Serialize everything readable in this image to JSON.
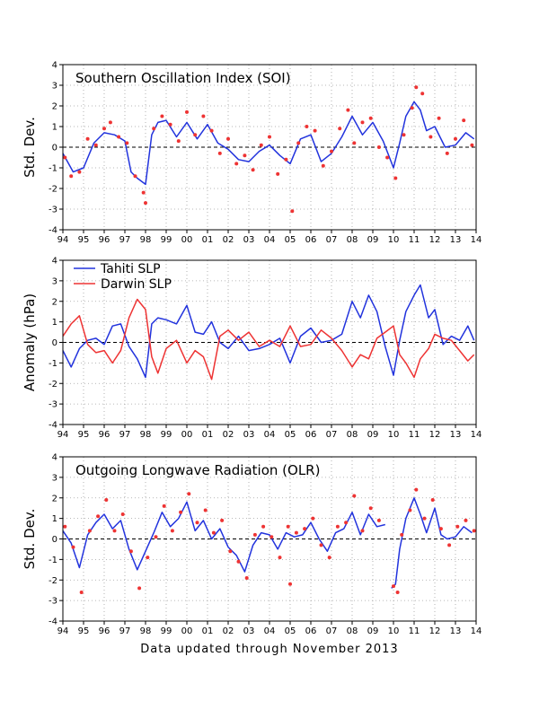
{
  "footer": "Data updated through November 2013",
  "colors": {
    "blue": "#2233dd",
    "red": "#ee3333",
    "grid": "#a0a0a0",
    "axis": "#000000"
  },
  "chart_data": [
    {
      "type": "line",
      "title": "Southern Oscillation Index (SOI)",
      "ylabel": "Std. Dev.",
      "xlim": [
        1994,
        2014
      ],
      "ylim": [
        -4,
        4
      ],
      "xticks": [
        "94",
        "95",
        "96",
        "97",
        "98",
        "99",
        "00",
        "01",
        "02",
        "03",
        "04",
        "05",
        "06",
        "07",
        "08",
        "09",
        "10",
        "11",
        "12",
        "13",
        "14"
      ],
      "yticks": [
        "-4",
        "-3",
        "-2",
        "-1",
        "0",
        "1",
        "2",
        "3",
        "4"
      ],
      "grid": true,
      "series": [
        {
          "style": "line",
          "color": "#2233dd",
          "x": [
            1994.0,
            1994.5,
            1995.0,
            1995.5,
            1996.0,
            1996.5,
            1997.0,
            1997.3,
            1997.6,
            1998.0,
            1998.3,
            1998.6,
            1999.0,
            1999.5,
            2000.0,
            2000.5,
            2001.0,
            2001.5,
            2002.0,
            2002.5,
            2003.0,
            2003.5,
            2004.0,
            2004.5,
            2005.0,
            2005.5,
            2006.0,
            2006.5,
            2007.0,
            2007.5,
            2008.0,
            2008.5,
            2009.0,
            2009.5,
            2010.0,
            2010.3,
            2010.6,
            2011.0,
            2011.3,
            2011.6,
            2012.0,
            2012.5,
            2013.0,
            2013.5,
            2013.9
          ],
          "y": [
            -0.3,
            -1.2,
            -1.0,
            0.2,
            0.7,
            0.6,
            0.3,
            -1.2,
            -1.5,
            -1.8,
            0.6,
            1.2,
            1.3,
            0.5,
            1.2,
            0.4,
            1.1,
            0.2,
            -0.1,
            -0.6,
            -0.7,
            -0.2,
            0.1,
            -0.4,
            -0.8,
            0.4,
            0.6,
            -0.7,
            -0.3,
            0.5,
            1.5,
            0.6,
            1.2,
            0.3,
            -1.0,
            0.2,
            1.5,
            2.2,
            1.8,
            0.8,
            1.0,
            0.0,
            0.1,
            0.7,
            0.4
          ]
        },
        {
          "style": "points",
          "color": "#ee3333",
          "x": [
            1994.1,
            1994.4,
            1994.8,
            1995.2,
            1995.6,
            1996.0,
            1996.3,
            1996.7,
            1997.1,
            1997.5,
            1997.9,
            1998.0,
            1998.4,
            1998.8,
            1999.2,
            1999.6,
            2000.0,
            2000.4,
            2000.8,
            2001.2,
            2001.6,
            2002.0,
            2002.4,
            2002.8,
            2003.2,
            2003.6,
            2004.0,
            2004.4,
            2004.8,
            2005.1,
            2005.4,
            2005.8,
            2006.2,
            2006.6,
            2007.0,
            2007.4,
            2007.8,
            2008.1,
            2008.5,
            2008.9,
            2009.3,
            2009.7,
            2010.1,
            2010.5,
            2010.9,
            2011.1,
            2011.4,
            2011.8,
            2012.2,
            2012.6,
            2013.0,
            2013.4,
            2013.8
          ],
          "y": [
            -0.5,
            -1.4,
            -1.2,
            0.4,
            0.1,
            0.9,
            1.2,
            0.5,
            0.2,
            -1.4,
            -2.2,
            -2.7,
            0.9,
            1.5,
            1.1,
            0.3,
            1.7,
            0.6,
            1.5,
            0.8,
            -0.3,
            0.4,
            -0.8,
            -0.4,
            -1.1,
            0.1,
            0.5,
            -1.3,
            -0.6,
            -3.1,
            0.2,
            1.0,
            0.8,
            -0.9,
            -0.2,
            0.9,
            1.8,
            0.2,
            1.2,
            1.4,
            0.0,
            -0.5,
            -1.5,
            0.6,
            1.9,
            2.9,
            2.6,
            0.5,
            1.4,
            -0.3,
            0.4,
            1.3,
            0.1
          ]
        }
      ]
    },
    {
      "type": "line",
      "ylabel": "Anomaly (hPa)",
      "xlim": [
        1994,
        2014
      ],
      "ylim": [
        -4,
        4
      ],
      "xticks": [
        "94",
        "95",
        "96",
        "97",
        "98",
        "99",
        "00",
        "01",
        "02",
        "03",
        "04",
        "05",
        "06",
        "07",
        "08",
        "09",
        "10",
        "11",
        "12",
        "13",
        "14"
      ],
      "yticks": [
        "-4",
        "-3",
        "-2",
        "-1",
        "0",
        "1",
        "2",
        "3",
        "4"
      ],
      "grid": true,
      "legend": "top-left",
      "series": [
        {
          "name": "Tahiti SLP",
          "style": "line",
          "color": "#2233dd",
          "x": [
            1994.0,
            1994.4,
            1994.8,
            1995.2,
            1995.6,
            1996.0,
            1996.4,
            1996.8,
            1997.2,
            1997.6,
            1998.0,
            1998.3,
            1998.6,
            1999.0,
            1999.5,
            2000.0,
            2000.4,
            2000.8,
            2001.2,
            2001.6,
            2002.0,
            2002.5,
            2003.0,
            2003.5,
            2004.0,
            2004.5,
            2005.0,
            2005.5,
            2006.0,
            2006.5,
            2007.0,
            2007.5,
            2008.0,
            2008.4,
            2008.8,
            2009.2,
            2009.6,
            2010.0,
            2010.3,
            2010.6,
            2011.0,
            2011.3,
            2011.7,
            2012.0,
            2012.4,
            2012.8,
            2013.2,
            2013.6,
            2013.9
          ],
          "y": [
            -0.4,
            -1.2,
            -0.3,
            0.1,
            0.2,
            -0.1,
            0.8,
            0.9,
            -0.2,
            -0.8,
            -1.7,
            0.9,
            1.2,
            1.1,
            0.9,
            1.8,
            0.5,
            0.4,
            1.0,
            0.0,
            -0.3,
            0.3,
            -0.4,
            -0.3,
            -0.1,
            0.2,
            -1.0,
            0.3,
            0.7,
            0.0,
            0.1,
            0.4,
            2.0,
            1.2,
            2.3,
            1.5,
            -0.2,
            -1.6,
            0.1,
            1.5,
            2.3,
            2.8,
            1.2,
            1.6,
            -0.1,
            0.3,
            0.1,
            0.8,
            0.1
          ]
        },
        {
          "name": "Darwin SLP",
          "style": "line",
          "color": "#ee3333",
          "x": [
            1994.0,
            1994.4,
            1994.8,
            1995.2,
            1995.6,
            1996.0,
            1996.4,
            1996.8,
            1997.2,
            1997.6,
            1998.0,
            1998.3,
            1998.6,
            1999.0,
            1999.5,
            2000.0,
            2000.4,
            2000.8,
            2001.2,
            2001.6,
            2002.0,
            2002.5,
            2003.0,
            2003.5,
            2004.0,
            2004.5,
            2005.0,
            2005.5,
            2006.0,
            2006.5,
            2007.0,
            2007.5,
            2008.0,
            2008.4,
            2008.8,
            2009.2,
            2009.6,
            2010.0,
            2010.3,
            2010.6,
            2011.0,
            2011.3,
            2011.7,
            2012.0,
            2012.4,
            2012.8,
            2013.2,
            2013.6,
            2013.9
          ],
          "y": [
            0.3,
            0.9,
            1.3,
            -0.1,
            -0.5,
            -0.4,
            -1.0,
            -0.4,
            1.2,
            2.1,
            1.6,
            -0.7,
            -1.5,
            -0.3,
            0.1,
            -1.0,
            -0.4,
            -0.7,
            -1.8,
            0.3,
            0.6,
            0.1,
            0.5,
            -0.2,
            0.1,
            -0.2,
            0.8,
            -0.2,
            -0.1,
            0.6,
            0.2,
            -0.4,
            -1.2,
            -0.6,
            -0.8,
            0.2,
            0.5,
            0.8,
            -0.6,
            -1.0,
            -1.7,
            -0.8,
            -0.3,
            0.4,
            0.2,
            0.1,
            -0.4,
            -0.9,
            -0.6
          ]
        }
      ]
    },
    {
      "type": "line",
      "title": "Outgoing Longwave Radiation (OLR)",
      "ylabel": "Std. Dev.",
      "xlim": [
        1994,
        2014
      ],
      "ylim": [
        -4,
        4
      ],
      "xticks": [
        "94",
        "95",
        "96",
        "97",
        "98",
        "99",
        "00",
        "01",
        "02",
        "03",
        "04",
        "05",
        "06",
        "07",
        "08",
        "09",
        "10",
        "11",
        "12",
        "13",
        "14"
      ],
      "yticks": [
        "-4",
        "-3",
        "-2",
        "-1",
        "0",
        "1",
        "2",
        "3",
        "4"
      ],
      "grid": true,
      "series": [
        {
          "style": "line",
          "color": "#2233dd",
          "x": [
            1994.0,
            1994.4,
            1994.8,
            1995.2,
            1995.6,
            1996.0,
            1996.4,
            1996.8,
            1997.2,
            1997.6,
            1998.0,
            1998.4,
            1998.8,
            1999.2,
            1999.6,
            2000.0,
            2000.4,
            2000.8,
            2001.2,
            2001.6,
            2002.0,
            2002.4,
            2002.8,
            2003.2,
            2003.6,
            2004.0,
            2004.4,
            2004.8,
            2005.2,
            2005.6,
            2006.0,
            2006.4,
            2006.8,
            2007.2,
            2007.6,
            2008.0,
            2008.4,
            2008.8,
            2009.2,
            2009.6
          ],
          "y": [
            0.4,
            -0.2,
            -1.4,
            0.2,
            0.8,
            1.2,
            0.5,
            0.9,
            -0.5,
            -1.5,
            -0.6,
            0.3,
            1.3,
            0.6,
            1.0,
            1.8,
            0.4,
            0.9,
            0.0,
            0.5,
            -0.4,
            -0.8,
            -1.6,
            -0.3,
            0.3,
            0.2,
            -0.5,
            0.3,
            0.1,
            0.2,
            0.8,
            0.0,
            -0.6,
            0.3,
            0.5,
            1.3,
            0.2,
            1.2,
            0.6,
            0.7
          ]
        },
        {
          "style": "line",
          "color": "#2233dd",
          "x": [
            2009.9,
            2010.1,
            2010.3,
            2010.6,
            2011.0,
            2011.3,
            2011.6,
            2012.0,
            2012.3,
            2012.6,
            2013.0,
            2013.4,
            2013.8
          ],
          "y": [
            -2.4,
            -2.2,
            -0.5,
            1.0,
            2.0,
            1.2,
            0.3,
            1.5,
            0.2,
            0.0,
            0.1,
            0.6,
            0.3
          ]
        },
        {
          "style": "points",
          "color": "#ee3333",
          "x": [
            1994.1,
            1994.5,
            1994.9,
            1995.3,
            1995.7,
            1996.1,
            1996.5,
            1996.9,
            1997.3,
            1997.7,
            1998.1,
            1998.5,
            1998.9,
            1999.3,
            1999.7,
            2000.1,
            2000.5,
            2000.9,
            2001.3,
            2001.7,
            2002.1,
            2002.5,
            2002.9,
            2003.3,
            2003.7,
            2004.1,
            2004.5,
            2004.9,
            2005.0,
            2005.3,
            2005.7,
            2006.1,
            2006.5,
            2006.9,
            2007.3,
            2007.7,
            2008.1,
            2008.5,
            2008.9,
            2009.3,
            2010.0,
            2010.2,
            2010.4,
            2010.8,
            2011.1,
            2011.5,
            2011.9,
            2012.3,
            2012.7,
            2013.1,
            2013.5,
            2013.9
          ],
          "y": [
            0.6,
            -0.4,
            -2.6,
            0.4,
            1.1,
            1.9,
            0.4,
            1.2,
            -0.6,
            -2.4,
            -0.9,
            0.1,
            1.6,
            0.4,
            1.3,
            2.2,
            0.8,
            1.4,
            0.3,
            0.9,
            -0.6,
            -1.1,
            -1.9,
            0.2,
            0.6,
            0.1,
            -0.9,
            0.6,
            -2.2,
            0.3,
            0.5,
            1.0,
            -0.3,
            -0.9,
            0.6,
            0.8,
            2.1,
            0.4,
            1.5,
            0.9,
            -2.3,
            -2.6,
            0.2,
            1.4,
            2.4,
            1.0,
            1.9,
            0.5,
            -0.3,
            0.6,
            0.9,
            0.4
          ]
        }
      ]
    }
  ]
}
